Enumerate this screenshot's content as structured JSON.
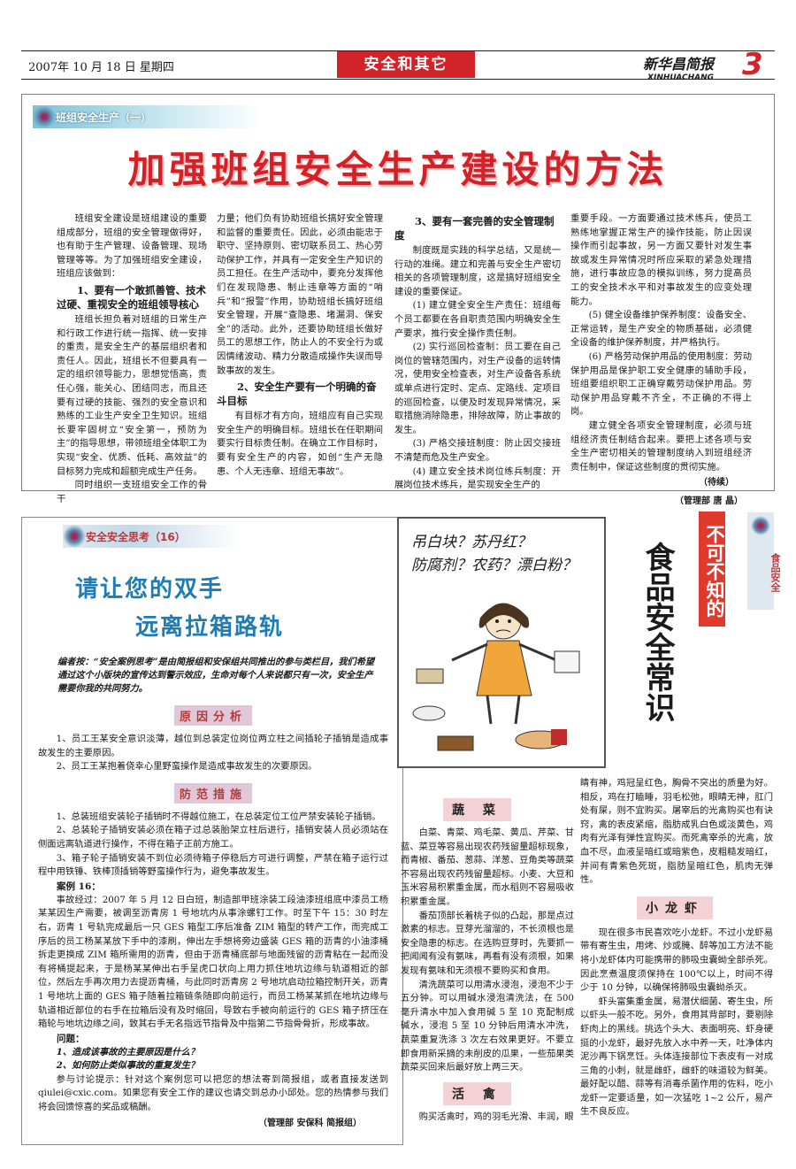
{
  "header": {
    "date": "2007年 10 月 18 日  星期四",
    "section": "安全和其它",
    "masthead_cn": "新华昌简报",
    "masthead_en": "XINHUACHANG",
    "page_number": "3"
  },
  "top_article": {
    "series_label": "班组安全生产（一）",
    "title": "加强班组安全生产建设的方法",
    "col1": [
      {
        "t": "p",
        "x": "班组安全建设是班组建设的重要组成部分，班组的安全管理做得好，也有助于生产管理、设备管理、现场管理等等。为了加强班组安全建设，班组应该做到："
      },
      {
        "t": "h",
        "x": "1、要有一个敢抓善管、技术过硬、重视安全的班组领导核心"
      },
      {
        "t": "p",
        "x": "班组长担负着对班组的日常生产和行政工作进行统一指挥、统一安排的重责，是安全生产的基层组织者和责任人。因此，班组长不但要具有一定的组织领导能力，思想觉悟高，责任心强，能关心、团结同志，而且还要有过硬的技能、强烈的安全意识和熟练的工业生产安全卫生知识。班组长要牢固树立“安全第一，预防为主”的指导思想，带领班组全体职工为实现“安全、优质、低耗、高效益”的目标努力完成和超额完成生产任务。"
      },
      {
        "t": "p",
        "x": "同时组织一支班组安全工作的骨干"
      }
    ],
    "col2": [
      {
        "t": "p0",
        "x": "力量；他们负有协助班组长搞好安全管理和监督的重要责任。因此，必须由能忠于职守、坚持原则、密切联系员工、热心劳动保护工作，并具有一定安全生产知识的员工担任。在生产活动中，要充分发挥他们在发现隐患、制止违章等方面的“哨兵”和“报警”作用，协助班组长搞好班组安全管理，开展“查隐患、堵漏洞、保安全”的活动。此外，还要协助班组长做好员工的思想工作，防止人的不安全行为或因情绪波动、精力分散造成操作失误而导致事故的发生。"
      },
      {
        "t": "h",
        "x": "2、安全生产要有一个明确的奋斗目标"
      },
      {
        "t": "p",
        "x": "有目标才有方向，班组应有自己实现安全生产的明确目标。班组长在任职期间要实行目标责任制。在确立工作目标时，要有安全生产的内容，如创“生产无隐患、个人无违章、班组无事故”。"
      }
    ],
    "col3": [
      {
        "t": "h",
        "x": "3、要有一套完善的安全管理制度"
      },
      {
        "t": "p",
        "x": "制度既是实践的科学总结，又是统一行动的准绳。建立和完善与安全生产密切相关的各项管理制度，这是搞好班组安全建设的重要保证。"
      },
      {
        "t": "p",
        "x": "(1) 建立健全安全生产责任：班组每个员工都要在各自职责范围内明确安全生产要求，推行安全操作责任制。"
      },
      {
        "t": "p",
        "x": "(2) 实行巡回检查制：员工要在自己岗位的管辖范围内，对生产设备的运转情况，使用安全检查表，对生产设备各系统或单点进行定时、定点、定路线、定项目的巡回检查，以便及时发现异常情况，采取措施消除隐患，排除故障，防止事故的发生。"
      },
      {
        "t": "p",
        "x": "(3) 严格交接班制度：防止因交接班不清楚而危及生产安全。"
      },
      {
        "t": "p",
        "x": "(4) 建立安全技术岗位练兵制度：开展岗位技术练兵，是实现安全生产的"
      }
    ],
    "col4": [
      {
        "t": "p0",
        "x": "重要手段。一方面要通过技术练兵，使员工熟练地掌握正常生产的操作技能，防止因误操作而引起事故，另一方面又要针对发生事故或发生异常情况时所应采取的紧急处理措施，进行事故应急的模拟训练，努力提高员工的安全技术水平和对事故发生的应变处理能力。"
      },
      {
        "t": "p",
        "x": "(5) 健全设备维护保养制度：设备安全、正常运转，是生产安全的物质基础，必须健全设备的维护保养制度，并严格执行。"
      },
      {
        "t": "p",
        "x": "(6) 严格劳动保护用品的使用制度：劳动保护用品是保护职工安全健康的辅助手段，班组要组织职工正确穿戴劳动保护用品。劳动保护用品穿戴不齐全，不正确的不得上岗。"
      },
      {
        "t": "p",
        "x": "建立健全各项安全管理制度，必须与班组经济责任制结合起来。要把上述各项与安全生产密切相关的管理制度纳入到班组经济责任制中，保证这些制度的贯彻实施。"
      }
    ],
    "continued": "（待续）",
    "byline": "（管理部   唐  晶）"
  },
  "case_article": {
    "series_label": "安全安全思考（16）",
    "title_line1": "请让您的双手",
    "title_line2": "远离拉箱路轨",
    "editor_note": "编者按：“安全案例思考”是由简报组和安保组共同推出的参与类栏目，我们希望通过这个小版块的宣传达到警示效应，生命对每个人来说都只有一次，安全生产需要你我的共同努力。",
    "reason_head": "原因分析",
    "reasons": [
      "1、员工王某安全意识淡薄，越位到总装定位岗位两立柱之间插轮子插销是造成事故发生的主要原因。",
      "2、员工王某抱着侥幸心里野蛮操作是造成事故发生的次要原因。"
    ],
    "measure_head": "防范措施",
    "measures": [
      "1、总装班组安装轮子插销时不得越位施工，在总装定位工位严禁安装轮子插销。",
      "2、总装轮子插销安装必须在箱子过总装胎架立柱后进行，插销安装人员必须站在侧面远离轨道进行操作，不得在箱子正前方施工。",
      "3、箱子轮子插销安装不到位必须待箱子停稳后方可进行调整，严禁在箱子运行过程中用铁锤、铁棒顶插销等野蛮操作行为，避免事故发生。"
    ],
    "case_head": "案例 16：",
    "case_text": "事故经过：2007 年 5 月 12 日白班，制造部甲班涂装工段油漆班组底中漆员工杨某某因生产需要，被调至沥青房 1 号地坑内从事涂螺钉工作。时至下午 15：30 时左右，沥青 1 号轨完成最后一只 GES 箱型工序后准备 ZIM 箱型的转产工作，而完成工序后的员工杨某某放下手中的漆刷，伸出左手想将旁边盛装 GES 箱的沥青的小油漆桶拆走更换成 ZIM 箱所需用的沥青，但由于沥青桶底部与地面残留的沥青粘在一起而没有将桶提起来，于是杨某某伸出右手呈虎口状向上用力抓住地坑边缘与轨道相近的部位，然后左手再次用力去提沥青桶，与此同时沥青房 2 号地坑启动拉箱控制开关，沥青 1 号地坑上面的 GES 箱子随着拉箱链条随即向前运行，而员工杨某某抓在地坑边缘与轨道相近部位的右手在拉箱后没有及时缩回，导致右手被向前运行的 GES 箱子挤压在箱轮与地坑边缘之间，致其右手无名指远节指骨及中指第二节指骨骨折，形成事故。",
    "q_head": "问题：",
    "questions": [
      "1、造成该事故的主要原因是什么？",
      "2、如何防止类似事故的重复发生？"
    ],
    "discussion": "参与讨论提示：针对这个案例您可以把您的想法寄到简报组，或者直接发送到 qiulei@cxic.com。如果您有安全工作的建议也请交到总办小邱处。您的热情参与我们将会回馈惊喜的奖品或稿酬。",
    "byline": "（管理部   安保科   简报组）"
  },
  "food_article": {
    "cartoon_text": [
      "吊白块？苏丹红？",
      "防腐剂？农药？漂白粉？"
    ],
    "title_red": "不可不知的",
    "title_black": "食品安全常识",
    "tab": "食品安全",
    "veg_head": "蔬  菜",
    "veg": [
      "白菜、青菜、鸡毛菜、黄瓜、芹菜、甘蓝、菜豆等容易出现农药残留量超标现象，而青椒、番茄、葱蒜、洋葱、豆角类等蔬菜不容易出现农药残留量超标。小麦、大豆和玉米容易积累重金属，而水稻则不容易吸收积累重金属。",
      "番茄顶部长着桃子似的凸起，那是点过激素的标志。豆芽光溜溜的，不长须根也是安全隐患的标志。在选购豆芽时，先要抓一把闻闻有没有氨味，再看有没有须根，如果发现有氨味和无须根不要购买和食用。",
      "清洗蔬菜可以用清水浸泡，浸泡不少于五分钟。可以用碱水浸泡清洗法，在 500 毫升清水中加入食用碱 5 至 10 克配制成碱水，浸泡 5 至 10 分钟后用清水冲洗，蔬菜重复洗涤 3 次左右效果更好。不要立即食用新采摘的未削皮的瓜果，一些茄果类蔬菜买回来后最好放上两三天。"
    ],
    "poultry_head": "活  禽",
    "poultry1": "购买活禽时，鸡的羽毛光滑、丰润，眼",
    "poultry2": "睛有神，鸡冠呈红色，胸骨不突出的质量为好。相反，鸡在打瞌睡，羽毛松弛，眼睛无神，肛门处有屎，则不宜购买。屠宰后的光禽购买也有诀窍，禽的表皮紧缩，脂肪成乳白色或淡黄色，鸡肉有光泽有弹性宜购买。而死禽宰杀的光禽，放血不尽，血液呈暗红或暗紫色，皮粗糙发暗红，并间有青紫色死斑，脂肪呈暗红色，肌肉无弹性。",
    "shrimp_head": "小龙虾",
    "shrimp": [
      "现在很多市民喜欢吃小龙虾。不过小龙虾易带有寄生虫，用烤、炒或腌、醉等加工方法不能将小龙虾体内可能携带的肺吸虫囊蚴全部杀死。因此烹煮温度须保持在 100℃以上，时间不得少于 10 分钟，以确保将肺吸虫囊蚴杀灭。",
      "虾头富集重金属，易潜伏细菌、寄生虫，所以虾头一般不吃。另外，食用其背部时，要剔除虾肉上的黑线。挑选个头大、表面明亮、虾身硬挺的小龙虾，最好先放入水中养一天，吐净体内泥沙再下锅烹饪。头体连接部位下表皮有一对成三角的小刺，就是雌虾，雌虾的味道较为鲜美。最好配以醋、蒜等有消毒杀菌作用的佐料，吃小龙虾一定要适量，如一次猛吃 1~2 公斤，易产生不良反应。"
    ]
  }
}
